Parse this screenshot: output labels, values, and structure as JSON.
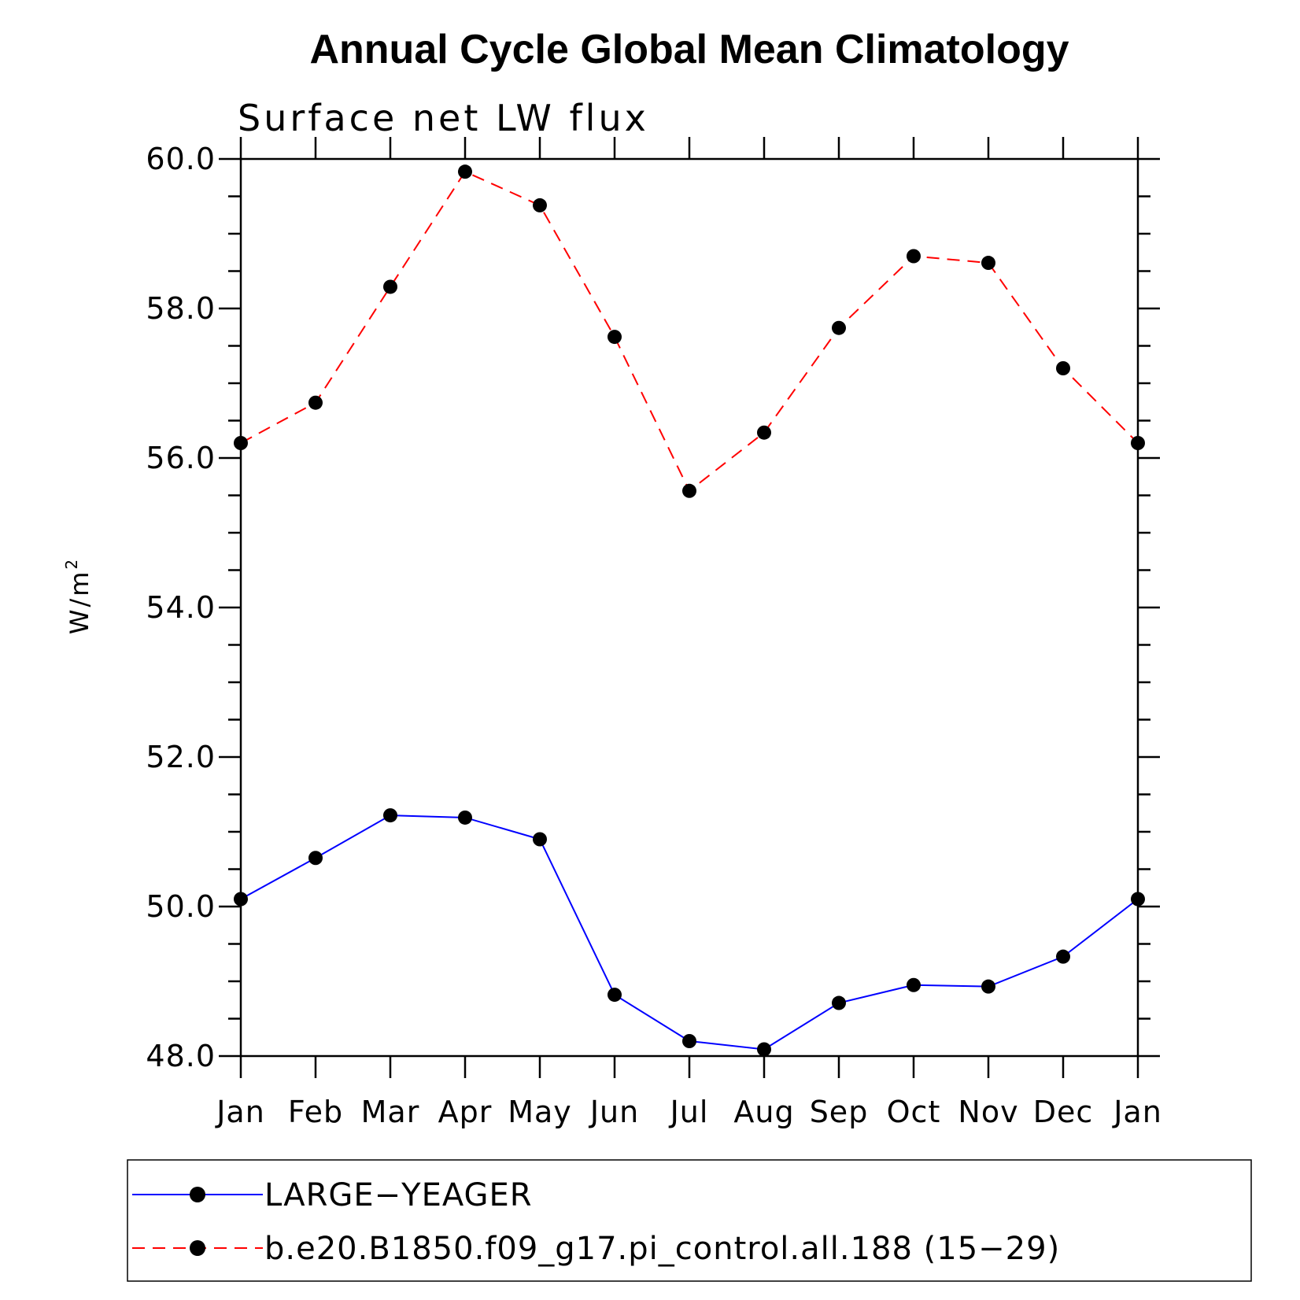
{
  "chart_data": {
    "type": "line",
    "title": "Annual Cycle Global Mean Climatology",
    "subtitle": "Surface net LW flux",
    "ylabel": "W/m",
    "ylabel_superscript": "2",
    "xlabel": "",
    "categories": [
      "Jan",
      "Feb",
      "Mar",
      "Apr",
      "May",
      "Jun",
      "Jul",
      "Aug",
      "Sep",
      "Oct",
      "Nov",
      "Dec",
      "Jan"
    ],
    "ylim": [
      48.0,
      60.0
    ],
    "yticks": [
      "48.0",
      "50.0",
      "52.0",
      "54.0",
      "56.0",
      "58.0",
      "60.0"
    ],
    "grid": false,
    "legend_position": "bottom",
    "series": [
      {
        "name": "LARGE−YEAGER",
        "color": "#0000ff",
        "line_style": "solid",
        "marker": "filled-circle",
        "values": [
          50.1,
          50.65,
          51.22,
          51.19,
          50.9,
          48.82,
          48.2,
          48.09,
          48.71,
          48.95,
          48.93,
          49.33,
          50.1
        ]
      },
      {
        "name": "b.e20.B1850.f09_g17.pi_control.all.188 (15−29)",
        "color": "#ff0000",
        "line_style": "dashed",
        "marker": "filled-circle",
        "values": [
          56.2,
          56.74,
          58.29,
          59.83,
          59.38,
          57.62,
          55.56,
          56.34,
          57.74,
          58.7,
          58.61,
          57.2,
          56.2
        ]
      }
    ]
  }
}
